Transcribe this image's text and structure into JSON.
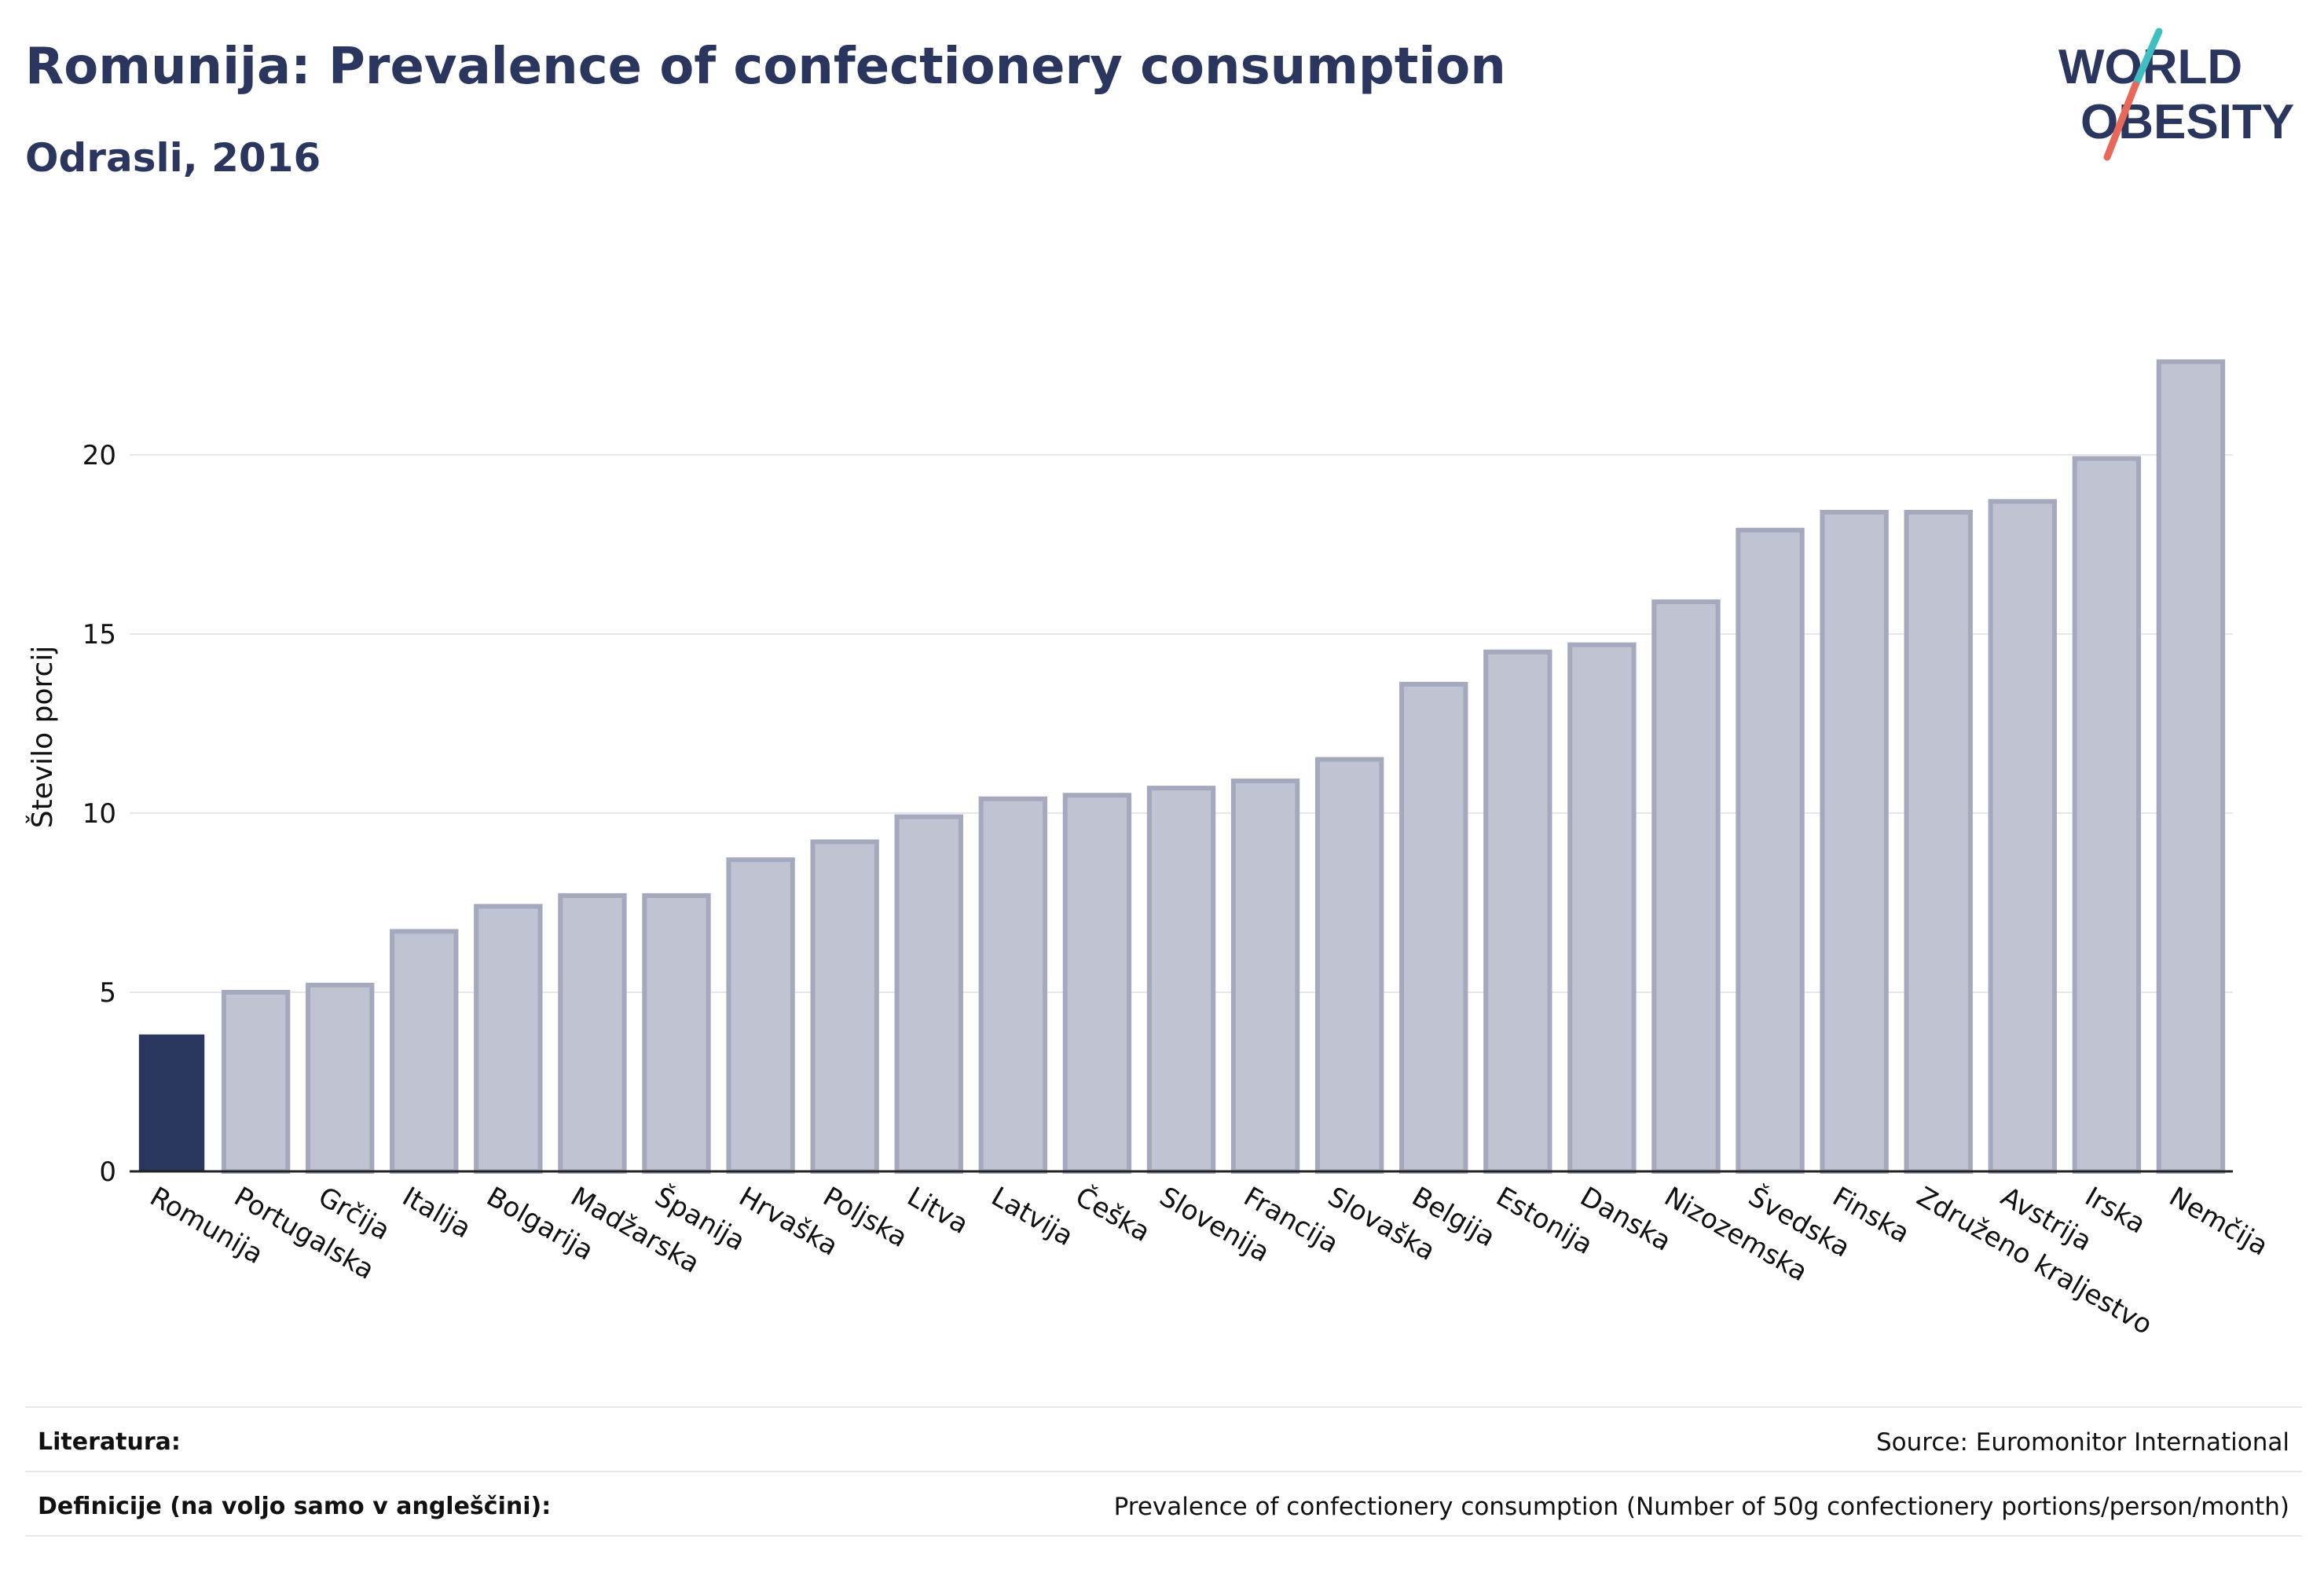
{
  "header": {
    "title": "Romunija: Prevalence of confectionery consumption",
    "subtitle": "Odrasli, 2016"
  },
  "logo": {
    "line1": "WORLD",
    "line2": "OBESITY",
    "colors": {
      "text": "#2b365f",
      "slash_top": "#3fbfbf",
      "slash_bottom": "#e8685a"
    }
  },
  "chart_data": {
    "type": "bar",
    "title": "Romunija: Prevalence of confectionery consumption",
    "subtitle": "Odrasli, 2016",
    "xlabel": "",
    "ylabel": "Število porcij",
    "ylim": [
      0,
      22.5
    ],
    "yticks": [
      0,
      5,
      10,
      15,
      20
    ],
    "grid": true,
    "highlight_index": 0,
    "colors": {
      "highlight": "#2b365f",
      "bar": "#c0c3d1",
      "bar_outline": "#a5a9be",
      "grid": "#e6e7ec",
      "axis": "#222222"
    },
    "categories": [
      "Romunija",
      "Portugalska",
      "Grčija",
      "Italija",
      "Bolgarija",
      "Madžarska",
      "Španija",
      "Hrvaška",
      "Poljska",
      "Litva",
      "Latvija",
      "Češka",
      "Slovenija",
      "Francija",
      "Slovaška",
      "Belgija",
      "Estonija",
      "Danska",
      "Nizozemska",
      "Švedska",
      "Finska",
      "Združeno kraljestvo",
      "Avstrija",
      "Irska",
      "Nemčija"
    ],
    "values": [
      3.8,
      5.0,
      5.2,
      6.7,
      7.4,
      7.7,
      7.7,
      8.7,
      9.2,
      9.9,
      10.4,
      10.5,
      10.7,
      10.9,
      11.5,
      13.6,
      14.5,
      14.7,
      15.9,
      17.9,
      18.4,
      18.4,
      18.7,
      19.9,
      22.6
    ]
  },
  "footer": {
    "literature_label": "Literatura:",
    "literature_value": "Source: Euromonitor International",
    "definitions_label": "Definicije (na voljo samo v angleščini):",
    "definitions_value": "Prevalence of confectionery consumption (Number of 50g confectionery portions/person/month)"
  }
}
